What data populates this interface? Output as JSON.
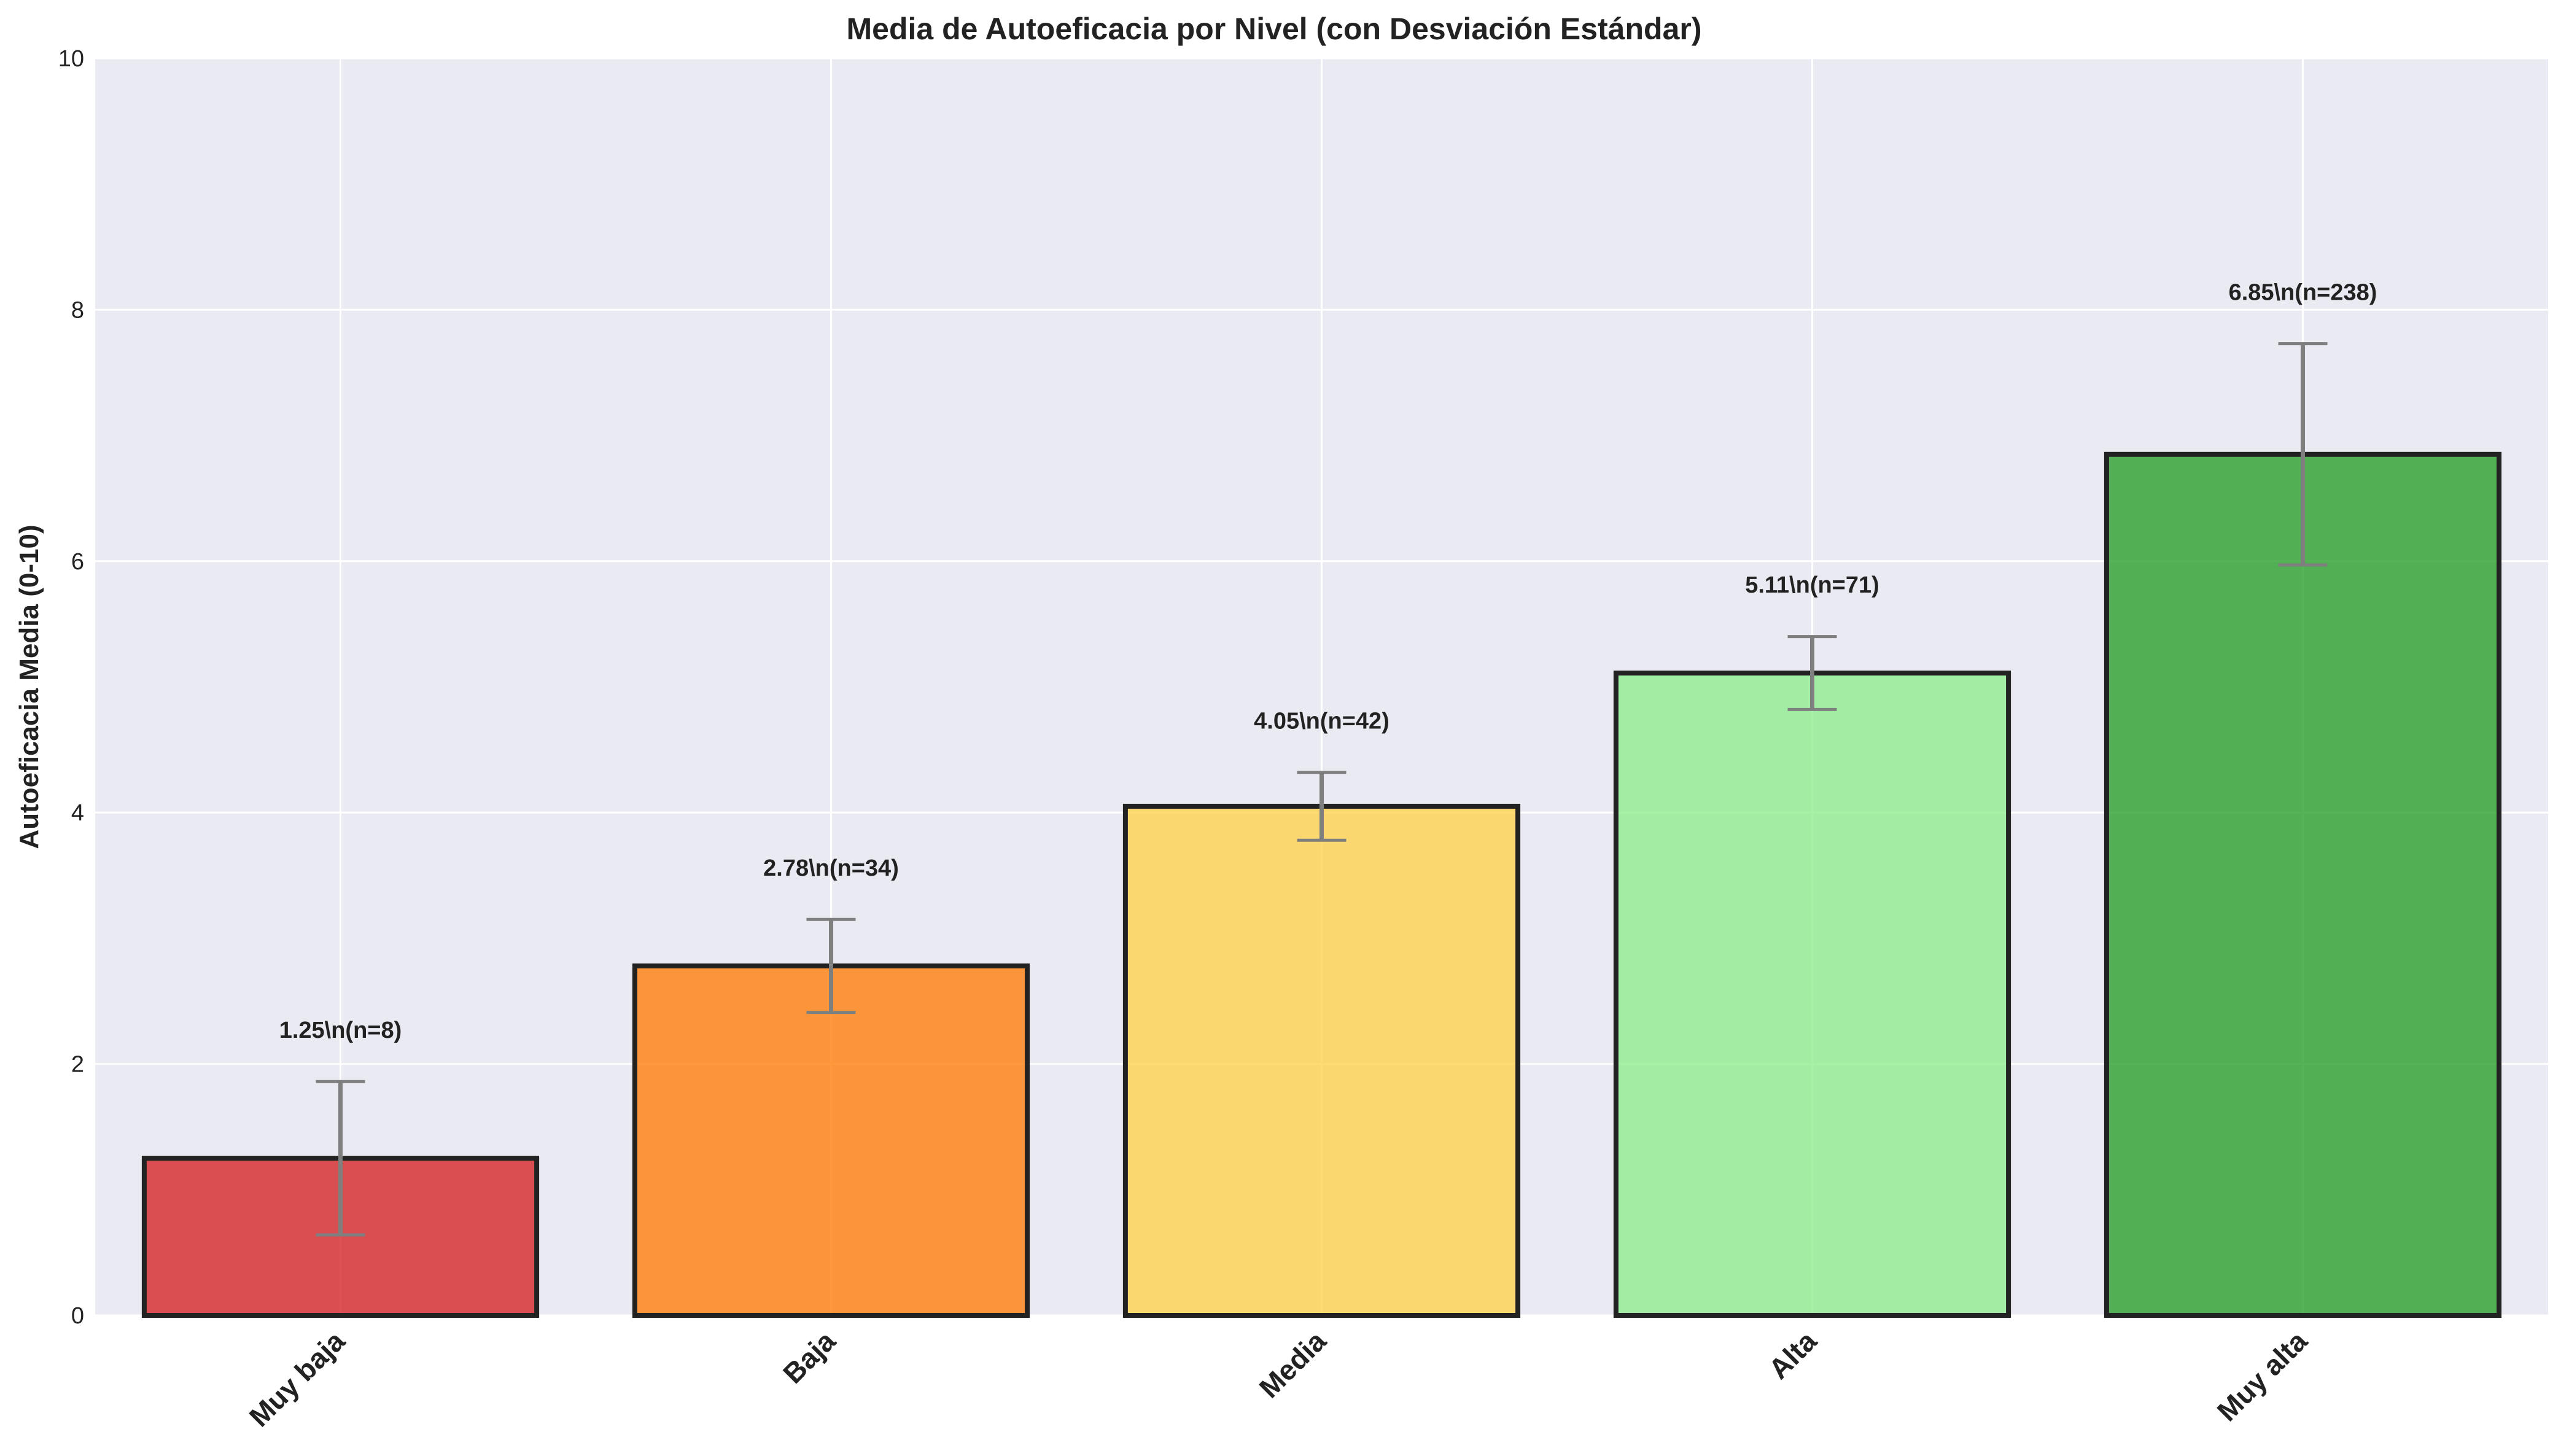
{
  "chart_data": {
    "type": "bar",
    "title": "Media de Autoeficacia por Nivel (con Desviación Estándar)",
    "xlabel": "",
    "ylabel": "Autoeficacia Media (0-10)",
    "ylim": [
      0,
      10
    ],
    "yticks": [
      0,
      2,
      4,
      6,
      8,
      10
    ],
    "grid": true,
    "categories": [
      "Muy baja",
      "Baja",
      "Media",
      "Alta",
      "Muy alta"
    ],
    "values": [
      1.25,
      2.78,
      4.05,
      5.11,
      6.85
    ],
    "error": [
      0.61,
      0.37,
      0.27,
      0.29,
      0.88
    ],
    "labels": [
      "1.25\\n(n=8)",
      "2.78\\n(n=34)",
      "4.05\\n(n=42)",
      "5.11\\n(n=71)",
      "6.85\\n(n=238)"
    ],
    "colors": [
      "#d62728",
      "#ff7f0e",
      "#ffd34e",
      "#90ee90",
      "#2ca02c"
    ],
    "background": "#eaeaf2"
  }
}
